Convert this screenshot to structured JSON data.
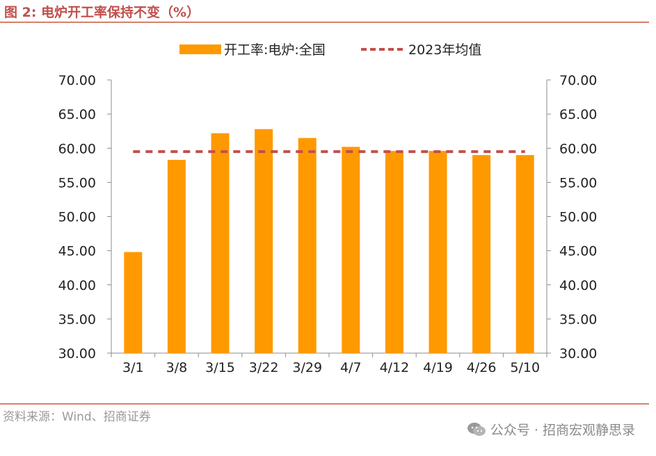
{
  "figure_title": "图 2:  电炉开工率保持不变（%）",
  "source_note": "资料来源：Wind、招商证券",
  "watermark": "公众号 · 招商宏观静思录",
  "colors": {
    "bar": "#ff9900",
    "avg_line": "#c0504d",
    "accent": "#c0504d"
  },
  "chart_data": {
    "type": "bar",
    "categories": [
      "3/1",
      "3/8",
      "3/15",
      "3/22",
      "3/29",
      "4/7",
      "4/12",
      "4/19",
      "4/26",
      "5/10"
    ],
    "series": [
      {
        "name": "开工率:电炉:全国",
        "type": "bar",
        "values": [
          44.8,
          58.3,
          62.2,
          62.8,
          61.5,
          60.2,
          59.6,
          59.6,
          59.0,
          59.0
        ]
      },
      {
        "name": "2023年均值",
        "type": "line-dashed",
        "values": [
          59.5,
          59.5,
          59.5,
          59.5,
          59.5,
          59.5,
          59.5,
          59.5,
          59.5,
          59.5
        ]
      }
    ],
    "ylim": [
      30,
      70
    ],
    "y_ticks": [
      "30.00",
      "35.00",
      "40.00",
      "45.00",
      "50.00",
      "55.00",
      "60.00",
      "65.00",
      "70.00"
    ],
    "y2_ticks": [
      "30.00",
      "35.00",
      "40.00",
      "45.00",
      "50.00",
      "55.00",
      "60.00",
      "65.00",
      "70.00"
    ],
    "grid": false,
    "legend_position": "top-center"
  }
}
